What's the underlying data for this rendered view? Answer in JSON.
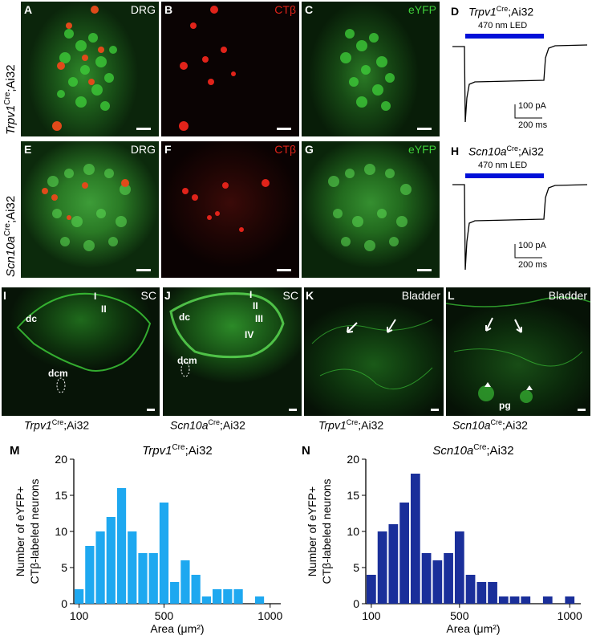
{
  "panels": {
    "A": {
      "letter": "A",
      "channel": "DRG"
    },
    "B": {
      "letter": "B",
      "channel": "CTβ"
    },
    "C": {
      "letter": "C",
      "channel": "eYFP"
    },
    "D": {
      "letter": "D",
      "title_gene": "Trpv1",
      "title_sup": "Cre",
      "title_rest": ";Ai32",
      "led": "470 nm LED",
      "scale_y": "100 pA",
      "scale_x": "200 ms"
    },
    "E": {
      "letter": "E",
      "channel": "DRG"
    },
    "F": {
      "letter": "F",
      "channel": "CTβ"
    },
    "G": {
      "letter": "G",
      "channel": "eYFP"
    },
    "H": {
      "letter": "H",
      "title_gene": "Scn10a",
      "title_sup": "Cre",
      "title_rest": ";Ai32",
      "led": "470 nm LED",
      "scale_y": "100 pA",
      "scale_x": "200 ms"
    },
    "I": {
      "letter": "I",
      "channel": "SC",
      "labels": [
        "dc",
        "I",
        "II",
        "dcm"
      ]
    },
    "J": {
      "letter": "J",
      "channel": "SC",
      "labels": [
        "dc",
        "I",
        "II",
        "III",
        "IV",
        "dcm"
      ]
    },
    "K": {
      "letter": "K",
      "channel": "Bladder"
    },
    "L": {
      "letter": "L",
      "channel": "Bladder",
      "labels": [
        "pg"
      ]
    }
  },
  "row_labels": {
    "top": {
      "gene": "Trpv1",
      "sup": "Cre",
      "rest": ";Ai32"
    },
    "mid": {
      "gene": "Scn10a",
      "sup": "Cre",
      "rest": ";Ai32"
    }
  },
  "captions": {
    "I": {
      "gene": "Trpv1",
      "sup": "Cre",
      "rest": ";Ai32"
    },
    "J": {
      "gene": "Scn10a",
      "sup": "Cre",
      "rest": ";Ai32"
    },
    "K": {
      "gene": "Trpv1",
      "sup": "Cre",
      "rest": ";Ai32"
    },
    "L": {
      "gene": "Scn10a",
      "sup": "Cre",
      "rest": ";Ai32"
    }
  },
  "colors": {
    "trpv1_bars": "#1ea8f0",
    "scn10a_bars": "#1a2f9a",
    "led": "#0010d8",
    "green": "#3fd13a",
    "red": "#e0231a"
  },
  "chart_data": [
    {
      "type": "bar",
      "letter": "M",
      "title_gene": "Trpv1",
      "title_sup": "Cre",
      "title_rest": ";Ai32",
      "ylabel_line1": "Number of eYFP+",
      "ylabel_line2": "CTβ-labeled neurons",
      "xlabel": "Area (μm²)",
      "x_ticks": [
        100,
        500,
        1000
      ],
      "y_ticks": [
        0,
        5,
        10,
        15,
        20
      ],
      "ylim": [
        0,
        20
      ],
      "xlim": [
        75,
        1050
      ],
      "bin_width": 50,
      "bins": [
        {
          "x": 100,
          "y": 2
        },
        {
          "x": 150,
          "y": 8
        },
        {
          "x": 200,
          "y": 10
        },
        {
          "x": 250,
          "y": 12
        },
        {
          "x": 300,
          "y": 16
        },
        {
          "x": 350,
          "y": 10
        },
        {
          "x": 400,
          "y": 7
        },
        {
          "x": 450,
          "y": 7
        },
        {
          "x": 500,
          "y": 14
        },
        {
          "x": 550,
          "y": 3
        },
        {
          "x": 600,
          "y": 6
        },
        {
          "x": 650,
          "y": 4
        },
        {
          "x": 700,
          "y": 1
        },
        {
          "x": 750,
          "y": 2
        },
        {
          "x": 800,
          "y": 2
        },
        {
          "x": 850,
          "y": 2
        },
        {
          "x": 950,
          "y": 1
        }
      ]
    },
    {
      "type": "bar",
      "letter": "N",
      "title_gene": "Scn10a",
      "title_sup": "Cre",
      "title_rest": ";Ai32",
      "ylabel_line1": "Number of eYFP+",
      "ylabel_line2": "CTβ-labeled neurons",
      "xlabel": "Area (μm²)",
      "x_ticks": [
        100,
        500,
        1000
      ],
      "y_ticks": [
        0,
        5,
        10,
        15,
        20
      ],
      "ylim": [
        0,
        20
      ],
      "xlim": [
        75,
        1050
      ],
      "bin_width": 50,
      "bins": [
        {
          "x": 100,
          "y": 4
        },
        {
          "x": 150,
          "y": 10
        },
        {
          "x": 200,
          "y": 11
        },
        {
          "x": 250,
          "y": 14
        },
        {
          "x": 300,
          "y": 18
        },
        {
          "x": 350,
          "y": 7
        },
        {
          "x": 400,
          "y": 6
        },
        {
          "x": 450,
          "y": 7
        },
        {
          "x": 500,
          "y": 10
        },
        {
          "x": 550,
          "y": 4
        },
        {
          "x": 600,
          "y": 3
        },
        {
          "x": 650,
          "y": 3
        },
        {
          "x": 700,
          "y": 1
        },
        {
          "x": 750,
          "y": 1
        },
        {
          "x": 800,
          "y": 1
        },
        {
          "x": 900,
          "y": 1
        },
        {
          "x": 1000,
          "y": 1
        }
      ]
    }
  ]
}
